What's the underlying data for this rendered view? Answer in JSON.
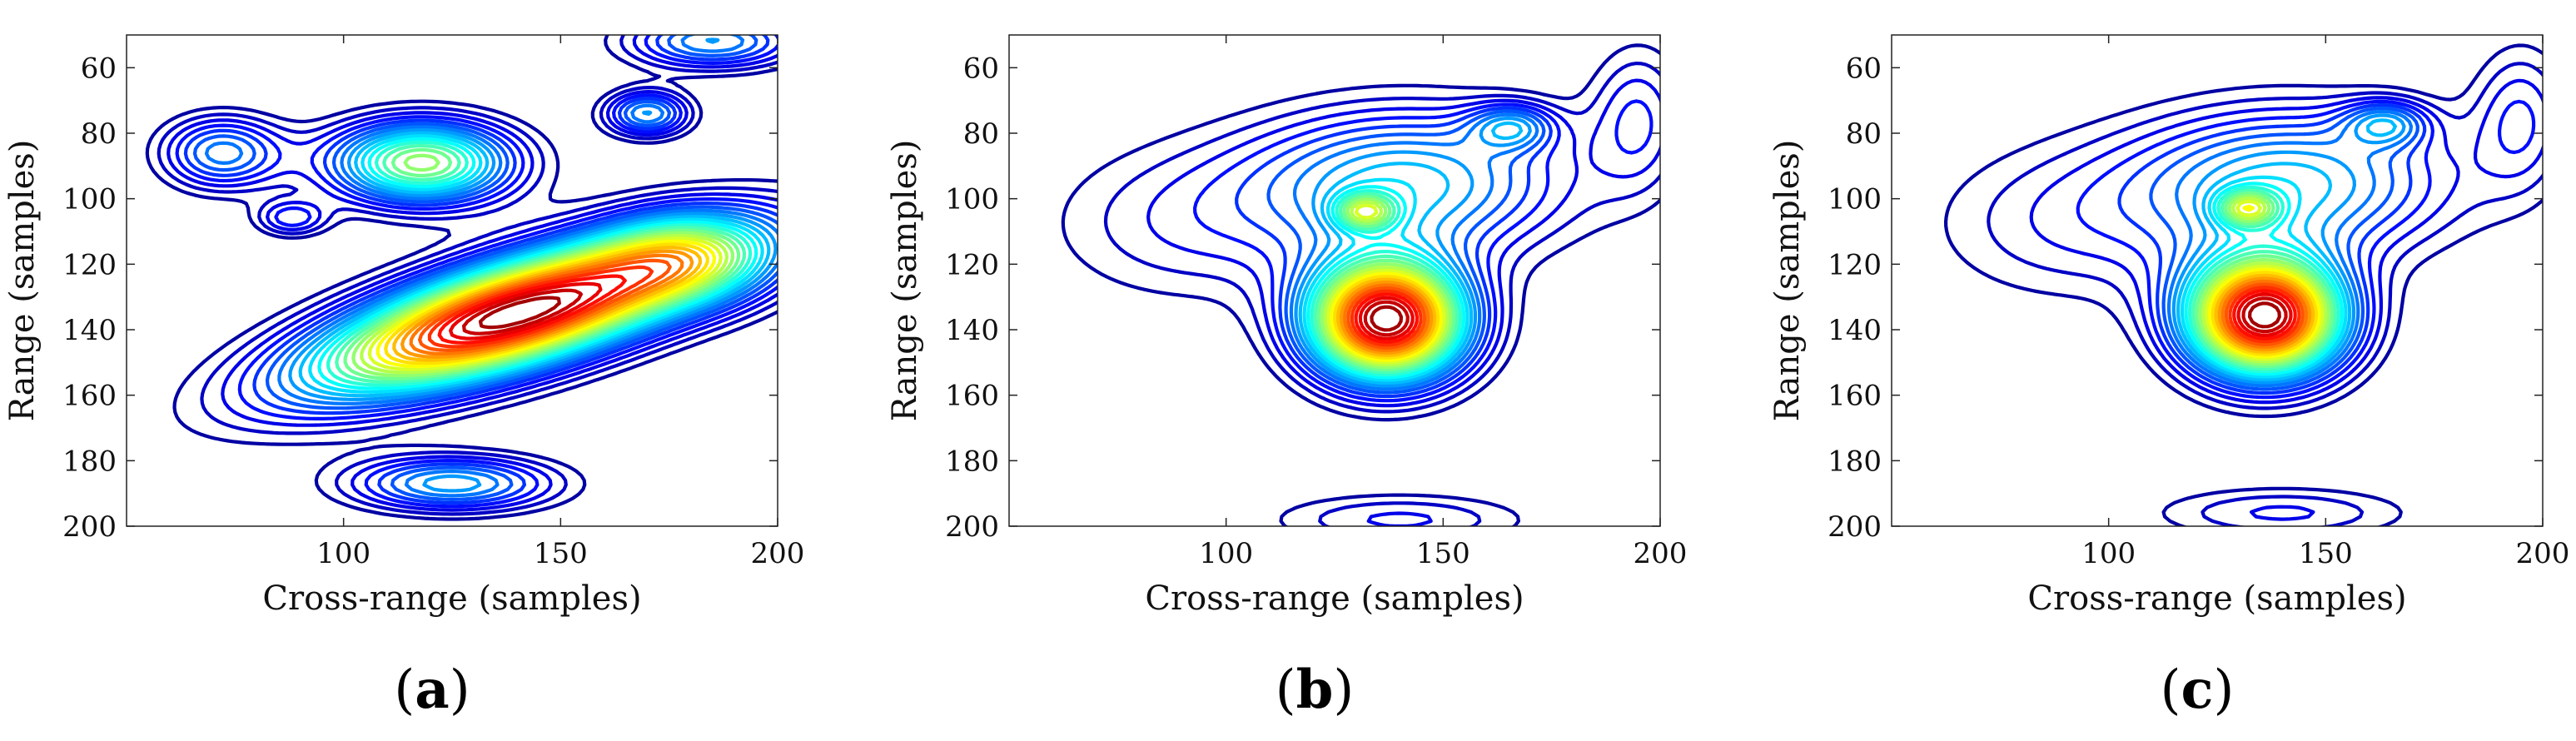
{
  "chart_data": [
    {
      "type": "contour",
      "panel_label": "a",
      "xlabel": "Cross-range (samples)",
      "ylabel": "Range (samples)",
      "xlim": [
        50,
        200
      ],
      "ylim": [
        50,
        200
      ],
      "y_reversed": true,
      "xticks": [
        100,
        150,
        200
      ],
      "yticks": [
        60,
        80,
        100,
        120,
        140,
        160,
        180,
        200
      ],
      "colormap": "jet",
      "blobs": [
        {
          "cx": 140,
          "cy": 135,
          "sx": 36,
          "sy": 11,
          "rot": -22,
          "amp": 1.0
        },
        {
          "cx": 118,
          "cy": 89,
          "sx": 15,
          "sy": 9,
          "rot": 0,
          "amp": 0.55
        },
        {
          "cx": 72,
          "cy": 86,
          "sx": 10,
          "sy": 8,
          "rot": 0,
          "amp": 0.28
        },
        {
          "cx": 125,
          "cy": 187,
          "sx": 17,
          "sy": 6,
          "rot": 0,
          "amp": 0.32
        },
        {
          "cx": 170,
          "cy": 74,
          "sx": 7,
          "sy": 5,
          "rot": 0,
          "amp": 0.3
        },
        {
          "cx": 185,
          "cy": 52,
          "sx": 14,
          "sy": 6,
          "rot": 0,
          "amp": 0.3
        },
        {
          "cx": 88,
          "cy": 106,
          "sx": 6,
          "sy": 4,
          "rot": 0,
          "amp": 0.18
        },
        {
          "cx": 180,
          "cy": 118,
          "sx": 14,
          "sy": 10,
          "rot": 0,
          "amp": 0.25
        }
      ]
    },
    {
      "type": "contour",
      "panel_label": "b",
      "xlabel": "Cross-range (samples)",
      "ylabel": "Range (samples)",
      "xlim": [
        50,
        200
      ],
      "ylim": [
        50,
        200
      ],
      "y_reversed": true,
      "xticks": [
        100,
        150,
        200
      ],
      "yticks": [
        60,
        80,
        100,
        120,
        140,
        160,
        180,
        200
      ],
      "colormap": "jet",
      "blobs": [
        {
          "cx": 137,
          "cy": 137,
          "sx": 13,
          "sy": 13,
          "rot": 0,
          "amp": 1.0
        },
        {
          "cx": 142,
          "cy": 95,
          "sx": 26,
          "sy": 16,
          "rot": 0,
          "amp": 0.35
        },
        {
          "cx": 132,
          "cy": 104,
          "sx": 5,
          "sy": 4,
          "rot": 0,
          "amp": 0.3
        },
        {
          "cx": 166,
          "cy": 78,
          "sx": 7,
          "sy": 5,
          "rot": 0,
          "amp": 0.22
        },
        {
          "cx": 90,
          "cy": 108,
          "sx": 24,
          "sy": 18,
          "rot": 0,
          "amp": 0.12
        },
        {
          "cx": 140,
          "cy": 198,
          "sx": 22,
          "sy": 6,
          "rot": 0,
          "amp": 0.14
        },
        {
          "cx": 195,
          "cy": 75,
          "sx": 8,
          "sy": 16,
          "rot": 0,
          "amp": 0.16
        }
      ]
    },
    {
      "type": "contour",
      "panel_label": "c",
      "xlabel": "Cross-range (samples)",
      "ylabel": "Range (samples)",
      "xlim": [
        50,
        200
      ],
      "ylim": [
        50,
        200
      ],
      "y_reversed": true,
      "xticks": [
        100,
        150,
        200
      ],
      "yticks": [
        60,
        80,
        100,
        120,
        140,
        160,
        180,
        200
      ],
      "colormap": "jet",
      "blobs": [
        {
          "cx": 136,
          "cy": 136,
          "sx": 13,
          "sy": 13,
          "rot": 0,
          "amp": 1.0
        },
        {
          "cx": 142,
          "cy": 95,
          "sx": 26,
          "sy": 16,
          "rot": 0,
          "amp": 0.35
        },
        {
          "cx": 132,
          "cy": 103,
          "sx": 5,
          "sy": 4,
          "rot": 0,
          "amp": 0.3
        },
        {
          "cx": 164,
          "cy": 77,
          "sx": 7,
          "sy": 5,
          "rot": 0,
          "amp": 0.22
        },
        {
          "cx": 90,
          "cy": 108,
          "sx": 24,
          "sy": 18,
          "rot": 0,
          "amp": 0.12
        },
        {
          "cx": 140,
          "cy": 196,
          "sx": 22,
          "sy": 6,
          "rot": 0,
          "amp": 0.14
        },
        {
          "cx": 195,
          "cy": 75,
          "sx": 8,
          "sy": 16,
          "rot": 0,
          "amp": 0.16
        }
      ]
    }
  ]
}
